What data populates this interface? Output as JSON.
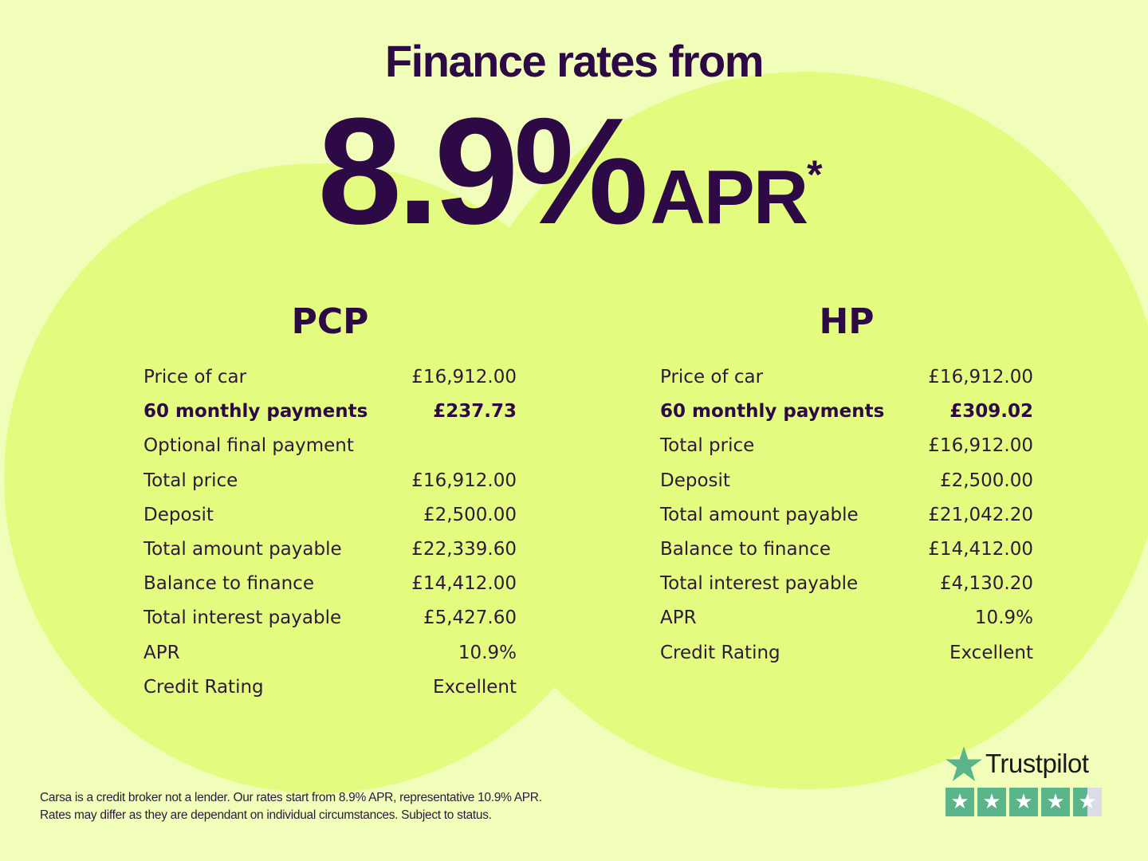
{
  "headline": {
    "line1": "Finance rates from",
    "rate": "8.9%",
    "apr": "APR",
    "asterisk": "*"
  },
  "pcp": {
    "title": "PCP",
    "rows": [
      {
        "label": "Price of car",
        "value": "£16,912.00"
      },
      {
        "label": "60 monthly payments",
        "value": "£237.73",
        "bold": true
      },
      {
        "label": "Optional final payment",
        "value": ""
      },
      {
        "label": "Total price",
        "value": "£16,912.00"
      },
      {
        "label": "Deposit",
        "value": "£2,500.00"
      },
      {
        "label": "Total amount payable",
        "value": "£22,339.60"
      },
      {
        "label": "Balance to finance",
        "value": "£14,412.00"
      },
      {
        "label": "Total interest payable",
        "value": "£5,427.60"
      },
      {
        "label": "APR",
        "value": "10.9%"
      },
      {
        "label": "Credit Rating",
        "value": "Excellent"
      }
    ]
  },
  "hp": {
    "title": "HP",
    "rows": [
      {
        "label": "Price of car",
        "value": "£16,912.00"
      },
      {
        "label": "60 monthly payments",
        "value": "£309.02",
        "bold": true
      },
      {
        "label": "Total price",
        "value": "£16,912.00"
      },
      {
        "label": "Deposit",
        "value": "£2,500.00"
      },
      {
        "label": "Total amount payable",
        "value": "£21,042.20"
      },
      {
        "label": "Balance to finance",
        "value": "£14,412.00"
      },
      {
        "label": "Total interest payable",
        "value": "£4,130.20"
      },
      {
        "label": "APR",
        "value": "10.9%"
      },
      {
        "label": "Credit Rating",
        "value": "Excellent"
      }
    ]
  },
  "disclaimer": {
    "line1": "Carsa is a credit broker not a lender. Our rates start from 8.9% APR, representative 10.9% APR.",
    "line2": "Rates may differ as they are dependant on individual circumstances. Subject to status."
  },
  "trustpilot": {
    "name": "Trustpilot",
    "rating": 4.5,
    "max": 5,
    "icon": "star-icon",
    "color": "#5bb58a"
  },
  "colors": {
    "background": "#f1feb9",
    "circle": "#e3fb7e",
    "text": "#2d0a45"
  }
}
